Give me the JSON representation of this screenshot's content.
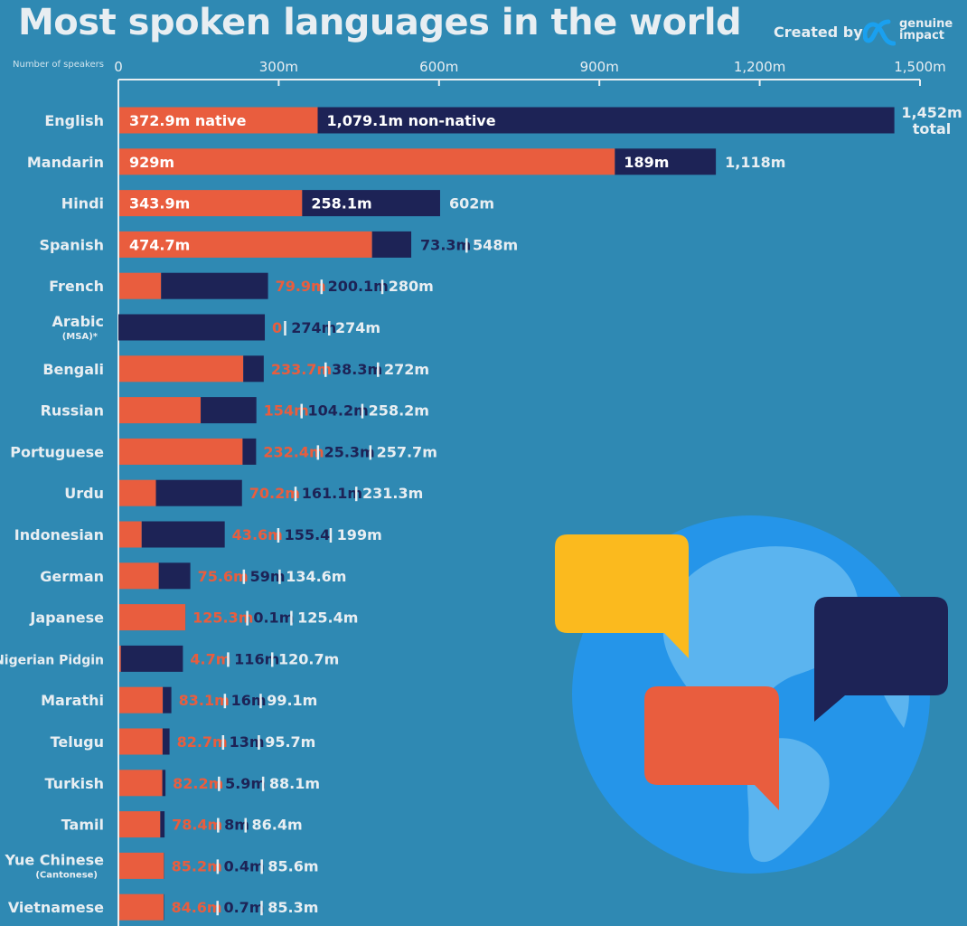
{
  "title": "Most spoken languages in the world",
  "credit": {
    "created_by": "Created by",
    "brand_line1": "genuine",
    "brand_line2": "impact"
  },
  "colors": {
    "background": "#2f89b3",
    "native": "#e95d3e",
    "non_native": "#1d2356",
    "text": "#e8eef2",
    "globe": "#2595e9",
    "land": "#5bb4ef",
    "bubble_yellow": "#fbba1e"
  },
  "chart_data": {
    "type": "bar",
    "orientation": "horizontal",
    "stacked": true,
    "axis_caption": "Number of speakers",
    "xlim": [
      0,
      1500
    ],
    "x_ticks": [
      0,
      300,
      600,
      900,
      1200,
      1500
    ],
    "x_tick_labels": [
      "0",
      "300m",
      "600m",
      "900m",
      "1,200m",
      "1,500m"
    ],
    "categories": [
      "English",
      "Mandarin",
      "Hindi",
      "Spanish",
      "French",
      "Arabic",
      "Bengali",
      "Russian",
      "Portuguese",
      "Urdu",
      "Indonesian",
      "German",
      "Japanese",
      "Nigerian Pidgin",
      "Marathi",
      "Telugu",
      "Turkish",
      "Tamil",
      "Yue Chinese",
      "Vietnamese"
    ],
    "category_sublabels": [
      "",
      "",
      "",
      "",
      "",
      "(MSA)*",
      "",
      "",
      "",
      "",
      "",
      "",
      "",
      "",
      "",
      "",
      "",
      "",
      "(Cantonese)",
      ""
    ],
    "series": [
      {
        "values": [
          372.9,
          929,
          343.9,
          474.7,
          79.9,
          0,
          233.7,
          154,
          232.4,
          70.2,
          43.6,
          75.6,
          125.3,
          4.7,
          83.1,
          82.7,
          82.2,
          78.4,
          85.2,
          84.6
        ]
      },
      {
        "values": [
          1079.1,
          189,
          258.1,
          73.3,
          200.1,
          274,
          38.3,
          104.2,
          25.3,
          161.1,
          155.4,
          59,
          0.1,
          116,
          16,
          13,
          5.9,
          8,
          0.4,
          0.7
        ]
      }
    ],
    "totals": [
      1452,
      1118,
      602,
      548,
      280,
      274,
      272,
      258.2,
      257.7,
      231.3,
      199,
      134.6,
      125.4,
      120.7,
      99.1,
      95.7,
      88.1,
      86.4,
      85.6,
      85.3
    ],
    "native_labels": [
      "372.9m native",
      "929m",
      "343.9m",
      "474.7m",
      "79.9m",
      "0",
      "233.7m",
      "154m",
      "232.4m",
      "70.2m",
      "43.6m",
      "75.6m",
      "125.3m",
      "4.7m",
      "83.1m",
      "82.7m",
      "82.2m",
      "78.4m",
      "85.2m",
      "84.6m"
    ],
    "non_native_labels": [
      "1,079.1m non-native",
      "189m",
      "258.1m",
      "73.3m",
      "200.1m",
      "274m",
      "38.3m",
      "104.2m",
      "25.3m",
      "161.1m",
      "155.4",
      "59m",
      "0.1m",
      "116m",
      "16m",
      "13m",
      "5.9m",
      "8m",
      "0.4m",
      "0.7m"
    ],
    "total_labels": [
      "1,452m",
      "1,118m",
      "602m",
      "548m",
      "280m",
      "274m",
      "272m",
      "258.2m",
      "257.7m",
      "231.3m",
      "199m",
      "134.6m",
      "125.4m",
      "120.7m",
      "99.1m",
      "95.7m",
      "88.1m",
      "86.4m",
      "85.6m",
      "85.3m"
    ],
    "total_suffix_first": "total",
    "label_mode": [
      "inside",
      "inside",
      "inside",
      "mixed",
      "outside",
      "outside",
      "outside",
      "outside",
      "outside",
      "outside",
      "outside",
      "outside",
      "outside",
      "outside",
      "outside",
      "outside",
      "outside",
      "outside",
      "outside",
      "outside"
    ]
  }
}
